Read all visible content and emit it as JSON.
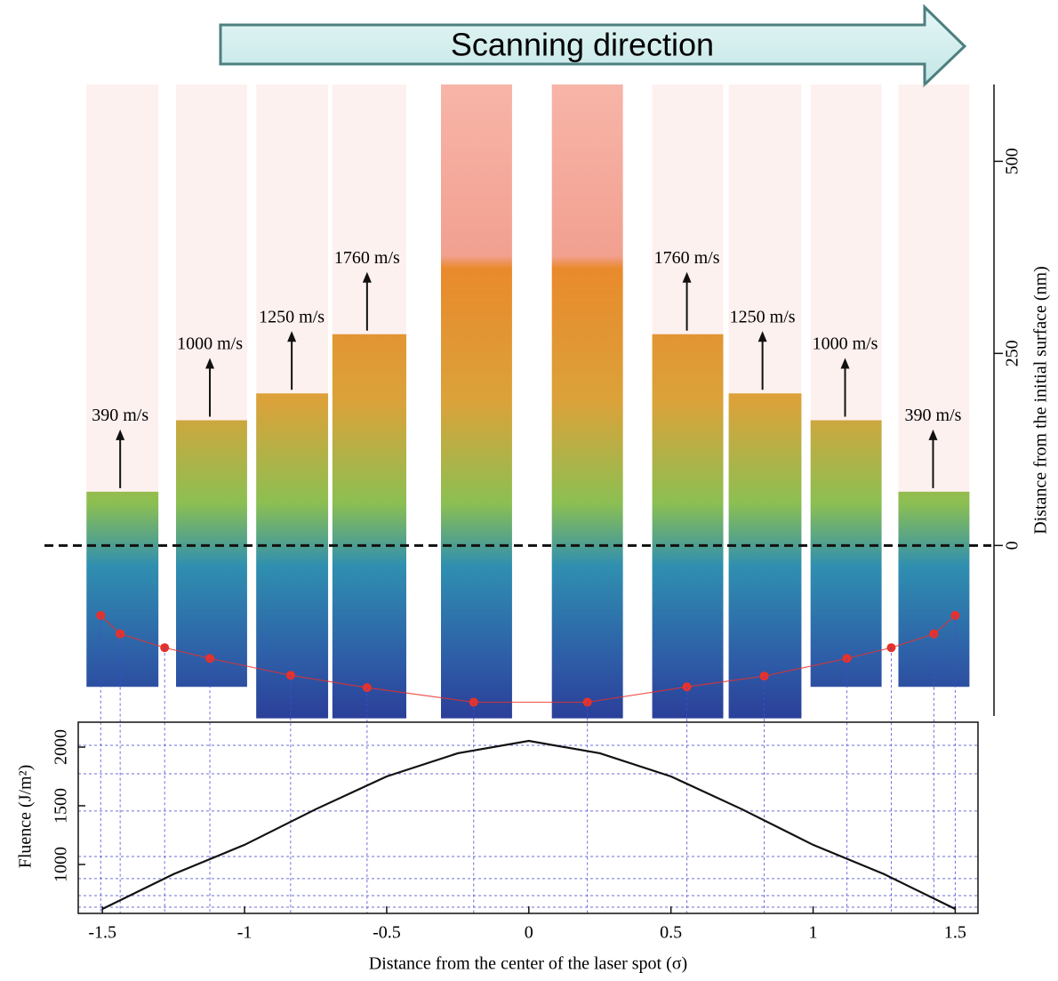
{
  "chart_data": [
    {
      "type": "snapshot",
      "annotation": "Scanning direction",
      "ylabel": "Distance from the initial surface (nm)",
      "xlim": [
        -1.585,
        1.58
      ],
      "ylim": [
        -230,
        600
      ],
      "yticks": [
        0,
        250,
        500
      ],
      "columns": [
        {
          "x": [
            -1.556,
            -1.303
          ],
          "top": 70,
          "bottom": -184
        },
        {
          "x": [
            -1.241,
            -0.991
          ],
          "top": 163,
          "bottom": -184
        },
        {
          "x": [
            -0.959,
            -0.706
          ],
          "top": 198,
          "bottom": -225
        },
        {
          "x": [
            -0.691,
            -0.431
          ],
          "top": 275,
          "bottom": -225
        },
        {
          "x": [
            -0.309,
            -0.059
          ],
          "top": 600,
          "bottom": -225
        },
        {
          "x": [
            0.081,
            0.331
          ],
          "top": 600,
          "bottom": -225
        },
        {
          "x": [
            0.434,
            0.684
          ],
          "top": 275,
          "bottom": -225
        },
        {
          "x": [
            0.703,
            0.959
          ],
          "top": 198,
          "bottom": -225
        },
        {
          "x": [
            0.991,
            1.241
          ],
          "top": 163,
          "bottom": -184
        },
        {
          "x": [
            1.3,
            1.55
          ],
          "top": 70,
          "bottom": -184
        }
      ],
      "velocities": {
        "labels": [
          "390 m/s",
          "1000 m/s",
          "1250 m/s",
          "1760 m/s",
          "1760 m/s",
          "1250 m/s",
          "1000 m/s",
          "390 m/s"
        ],
        "x": [
          -1.4375,
          -1.122,
          -0.834,
          -0.569,
          0.556,
          0.822,
          1.1125,
          1.422
        ],
        "y": [
          70,
          163,
          198,
          275,
          275,
          198,
          163,
          70
        ]
      },
      "points": {
        "color": "#e8312a",
        "x": [
          -1.506,
          -1.4375,
          -1.281,
          -1.122,
          -0.838,
          -0.569,
          -0.194,
          0.206,
          0.556,
          0.828,
          1.119,
          1.275,
          1.425,
          1.5
        ],
        "values": [
          -91,
          -115,
          -133,
          -147,
          -169,
          -185,
          -204,
          -204,
          -184,
          -170,
          -147,
          -133,
          -115,
          -91
        ]
      },
      "zero_line": 0
    },
    {
      "type": "line",
      "xlabel": "Distance from the center of the laser spot (σ)",
      "ylabel": "Fluence (J/m²)",
      "xlim": [
        -1.585,
        1.58
      ],
      "ylim": [
        583,
        2212
      ],
      "xticks": [
        -1.5,
        -1,
        -0.5,
        0,
        0.5,
        1,
        1.5
      ],
      "yticks": [
        1000,
        1500,
        2000
      ],
      "grid_y": [
        2015,
        1773,
        1455,
        1068,
        879,
        735,
        636
      ],
      "x": [
        -1.5,
        -1.25,
        -1,
        -0.75,
        -0.5,
        -0.25,
        0,
        0.25,
        0.5,
        0.75,
        1,
        1.25,
        1.5
      ],
      "values": [
        621,
        917,
        1167,
        1470,
        1750,
        1947,
        2053,
        1947,
        1750,
        1470,
        1167,
        917,
        621
      ],
      "color": "#111111"
    }
  ]
}
